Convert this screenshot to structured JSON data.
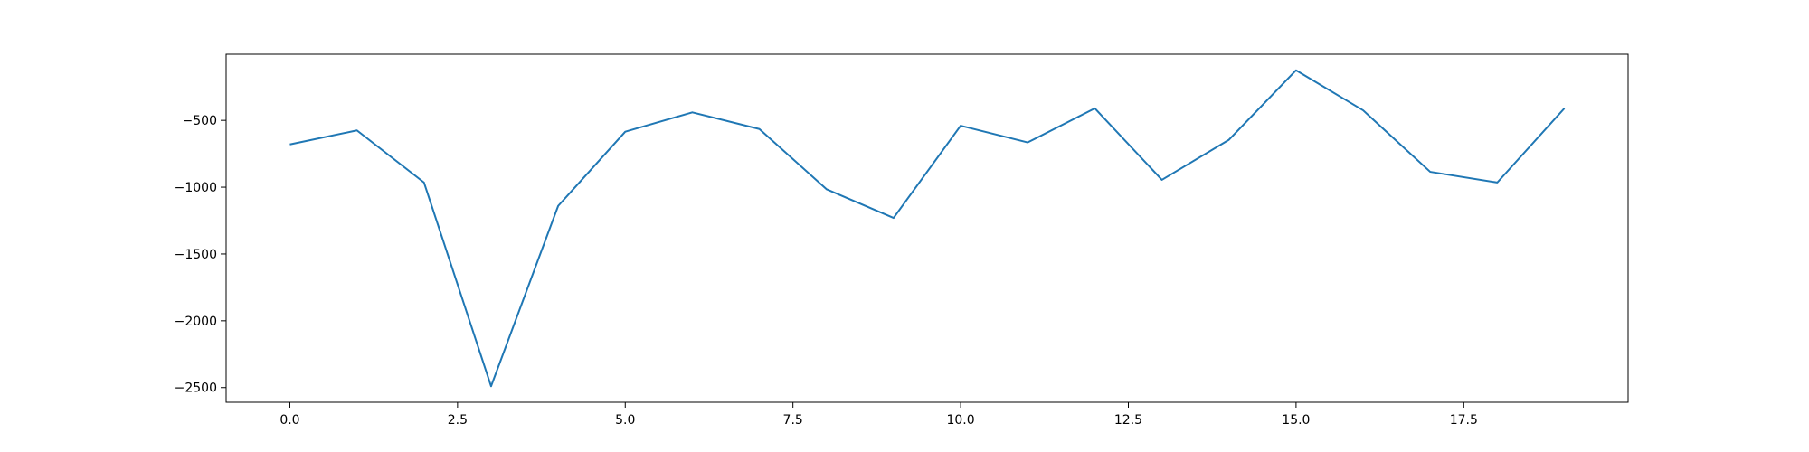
{
  "chart_data": {
    "type": "line",
    "x": [
      0,
      1,
      2,
      3,
      4,
      5,
      6,
      7,
      8,
      9,
      10,
      11,
      12,
      13,
      14,
      15,
      16,
      17,
      18,
      19
    ],
    "series": [
      {
        "values": [
          -680,
          -575,
          -965,
          -2490,
          -1140,
          -585,
          -440,
          -565,
          -1015,
          -1230,
          -540,
          -665,
          -410,
          -945,
          -645,
          -125,
          -425,
          -885,
          -965,
          -410
        ],
        "color": "#1f77b4"
      }
    ],
    "xlim": [
      -0.95,
      19.95
    ],
    "ylim": [
      -2610,
      -5
    ],
    "x_ticks": [
      0.0,
      2.5,
      5.0,
      7.5,
      10.0,
      12.5,
      15.0,
      17.5
    ],
    "x_tick_labels": [
      "0.0",
      "2.5",
      "5.0",
      "7.5",
      "10.0",
      "12.5",
      "15.0",
      "17.5"
    ],
    "y_ticks": [
      -500,
      -1000,
      -1500,
      -2000,
      -2500
    ],
    "y_tick_labels": [
      "−500",
      "−1000",
      "−1500",
      "−2000",
      "−2500"
    ],
    "grid": false,
    "title": "",
    "xlabel": "",
    "ylabel": ""
  }
}
